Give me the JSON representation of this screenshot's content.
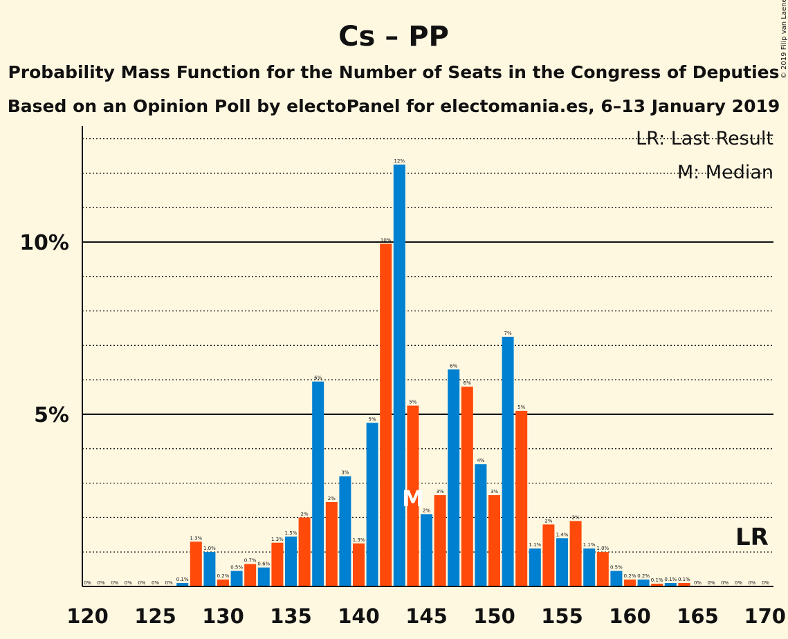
{
  "chart_data": {
    "type": "bar",
    "title": "Cs – PP",
    "subtitle_lines": [
      "Probability Mass Function for the Number of Seats in the Congress of Deputies",
      "Based on an Opinion Poll by electoPanel for electomania.es, 6–13 January 2019"
    ],
    "copyright": "© 2019 Filip van Laenen",
    "legend": [
      "LR: Last Result",
      "M: Median"
    ],
    "x": [
      120,
      121,
      122,
      123,
      124,
      125,
      126,
      127,
      128,
      129,
      130,
      131,
      132,
      133,
      134,
      135,
      136,
      137,
      138,
      139,
      140,
      141,
      142,
      143,
      144,
      145,
      146,
      147,
      148,
      149,
      150,
      151,
      152,
      153,
      154,
      155,
      156,
      157,
      158,
      159,
      160,
      161,
      162,
      163,
      164,
      165,
      166,
      167,
      168,
      169,
      170
    ],
    "values": [
      0,
      0,
      0,
      0,
      0,
      0,
      0,
      0.1,
      1.3,
      1.0,
      0.2,
      0.45,
      0.65,
      0.55,
      1.27,
      1.45,
      2.0,
      5.95,
      2.45,
      3.2,
      1.25,
      4.75,
      9.95,
      12.25,
      5.25,
      2.1,
      2.65,
      6.3,
      5.8,
      3.55,
      2.65,
      7.25,
      5.1,
      1.1,
      1.8,
      1.4,
      1.9,
      1.1,
      1.0,
      0.45,
      0.2,
      0.2,
      0.08,
      0.1,
      0.1,
      0,
      0,
      0,
      0,
      0,
      0
    ],
    "labels": [
      "0%",
      "0%",
      "0%",
      "0%",
      "0%",
      "0%",
      "0%",
      "0.1%",
      "1.3%",
      "1.0%",
      "0.2%",
      "0.5%",
      "0.7%",
      "0.6%",
      "1.3%",
      "1.5%",
      "2%",
      "6%",
      "2%",
      "3%",
      "1.3%",
      "5%",
      "10%",
      "12%",
      "5%",
      "2%",
      "3%",
      "6%",
      "6%",
      "4%",
      "3%",
      "7%",
      "5%",
      "1.1%",
      "2%",
      "1.4%",
      "2%",
      "1.1%",
      "1.0%",
      "0.5%",
      "0.2%",
      "0.2%",
      "0.1%",
      "0.1%",
      "0.1%",
      "0%",
      "0%",
      "0%",
      "0%",
      "0%",
      "0%"
    ],
    "colors": {
      "odd": "#0080d0",
      "even": "#ff4a0a",
      "background": "#fff8e1"
    },
    "ylim": [
      0,
      13
    ],
    "yticks": [
      {
        "value": 5,
        "label": "5%"
      },
      {
        "value": 10,
        "label": "10%"
      }
    ],
    "minor_grid_step": 1,
    "xticks": [
      {
        "value": 120,
        "label": "120"
      },
      {
        "value": 125,
        "label": "125"
      },
      {
        "value": 130,
        "label": "130"
      },
      {
        "value": 135,
        "label": "135"
      },
      {
        "value": 140,
        "label": "140"
      },
      {
        "value": 145,
        "label": "145"
      },
      {
        "value": 150,
        "label": "150"
      },
      {
        "value": 155,
        "label": "155"
      },
      {
        "value": 160,
        "label": "160"
      },
      {
        "value": 165,
        "label": "165"
      },
      {
        "value": 170,
        "label": "170"
      }
    ],
    "median": {
      "x": 144,
      "label": "M"
    },
    "last_result": {
      "x": 169,
      "label": "LR"
    }
  }
}
